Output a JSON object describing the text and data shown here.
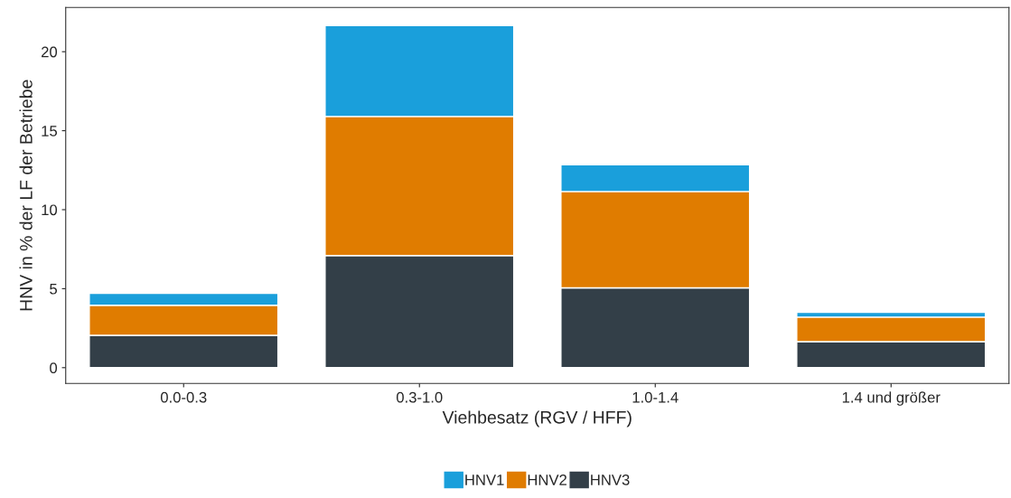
{
  "chart_data": {
    "type": "bar",
    "stacked": true,
    "xlabel": "Viehbesatz (RGV / HFF)",
    "ylabel": "HNV in % der LF der Betriebe",
    "categories": [
      "0.0-0.3",
      "0.3-1.0",
      "1.0-1.4",
      "1.4 und größer"
    ],
    "series": [
      {
        "name": "HNV3",
        "color": "#333f48",
        "values": [
          2.05,
          7.1,
          5.05,
          1.65
        ]
      },
      {
        "name": "HNV2",
        "color": "#e07c00",
        "values": [
          1.9,
          8.8,
          6.1,
          1.55
        ]
      },
      {
        "name": "HNV1",
        "color": "#1a9fdb",
        "values": [
          0.75,
          5.75,
          1.7,
          0.3
        ]
      }
    ],
    "ylim": [
      -1,
      22.8
    ],
    "yticks": [
      0,
      5,
      10,
      15,
      20
    ],
    "grid": false,
    "legend": "bottom"
  }
}
